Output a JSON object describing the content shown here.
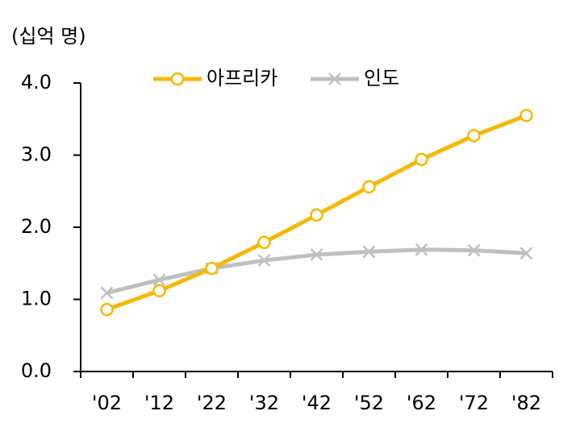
{
  "chart_data": {
    "type": "line",
    "y_label": "(십억 명)",
    "categories": [
      "'02",
      "'12",
      "'22",
      "'32",
      "'42",
      "'52",
      "'62",
      "'72",
      "'82"
    ],
    "series": [
      {
        "name": "아프리카",
        "color": "#f5b800",
        "marker": "circle",
        "values": [
          0.86,
          1.12,
          1.43,
          1.79,
          2.17,
          2.56,
          2.94,
          3.27,
          3.55
        ]
      },
      {
        "name": "인도",
        "color": "#c0c0c0",
        "marker": "x",
        "values": [
          1.09,
          1.27,
          1.43,
          1.54,
          1.62,
          1.66,
          1.69,
          1.68,
          1.64
        ]
      }
    ],
    "ylim": [
      0,
      4
    ],
    "yticks": [
      {
        "value": 0,
        "label": "0.0"
      },
      {
        "value": 1,
        "label": "1.0"
      },
      {
        "value": 2,
        "label": "2.0"
      },
      {
        "value": 3,
        "label": "3.0"
      },
      {
        "value": 4,
        "label": "4.0"
      }
    ],
    "legend": "top",
    "grid": false
  }
}
